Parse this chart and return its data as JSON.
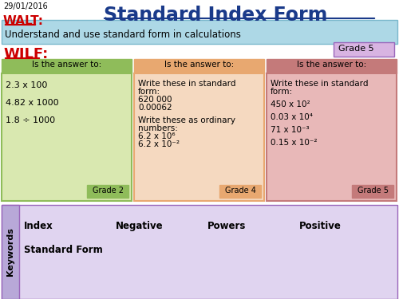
{
  "date": "29/01/2016",
  "title": "Standard Index Form",
  "walt_label": "WALT:",
  "walt_text": "Understand and use standard form in calculations",
  "wilf_label": "WILF:",
  "grade5_box": "Grade 5",
  "col1_header": "Is the answer to:",
  "col1_grade": "Grade 2",
  "col2_header": "Is the answer to:",
  "col2_grade": "Grade 4",
  "col3_header": "Is the answer to:",
  "col3_grade": "Grade 5",
  "keywords_label": "Keywords",
  "keywords_row1": [
    "Index",
    "Negative",
    "Powers",
    "Positive"
  ],
  "keywords_row2": [
    "Standard Form"
  ],
  "bg_white": "#ffffff",
  "bg_walt": "#add8e6",
  "bg_grade5_box": "#d8b4e2",
  "col1_header_bg": "#8fbc5a",
  "col1_body_bg": "#d9e8b0",
  "col1_grade_bg": "#8fbc5a",
  "col2_header_bg": "#e8a870",
  "col2_body_bg": "#f5d9c0",
  "col2_grade_bg": "#e8a870",
  "col3_header_bg": "#c47a7a",
  "col3_body_bg": "#e8b8b8",
  "col3_grade_bg": "#c47a7a",
  "keywords_side_bg": "#b8a8d8",
  "keywords_main_bg": "#e0d4f0",
  "title_color": "#1a3a8a",
  "walt_color": "#cc0000",
  "wilf_color": "#cc0000",
  "text_color": "#000000"
}
